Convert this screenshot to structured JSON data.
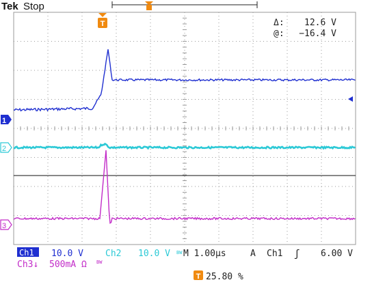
{
  "header": {
    "brand": "Tek",
    "status": "Stop",
    "trigger_marker": "T"
  },
  "readout": {
    "delta_label": "Δ:",
    "delta_value": "12.6 V",
    "at_label": "@:",
    "at_value": "−16.4 V"
  },
  "channels": [
    {
      "id": "1",
      "color": "#1f2fd0"
    },
    {
      "id": "2",
      "color": "#2cc9d6"
    },
    {
      "id": "3",
      "color": "#c22bc8"
    }
  ],
  "footer": {
    "ch1_label": "Ch1",
    "ch1_scale": "10.0 V",
    "ch2_label": "Ch2",
    "ch2_scale": "10.0 V",
    "bw_mark": "BW",
    "timebase": "M 1.00µs",
    "trig_source_symbol": "A",
    "trig_source": "Ch1",
    "trig_slope": "ʃ",
    "trig_level": "6.00 V",
    "ch3_label": "Ch3↓",
    "ch3_scale": "500mA Ω",
    "ch3_bw": "BW",
    "trig_position_marker": "T",
    "trig_position": "25.80 %"
  },
  "colors": {
    "background": "#ffffff",
    "grid": "#9a9a9a",
    "ch1": "#1f2fd0",
    "ch2": "#2cc9d6",
    "ch3": "#c22bc8",
    "trigger": "#f08a10",
    "text": "#222222"
  }
}
